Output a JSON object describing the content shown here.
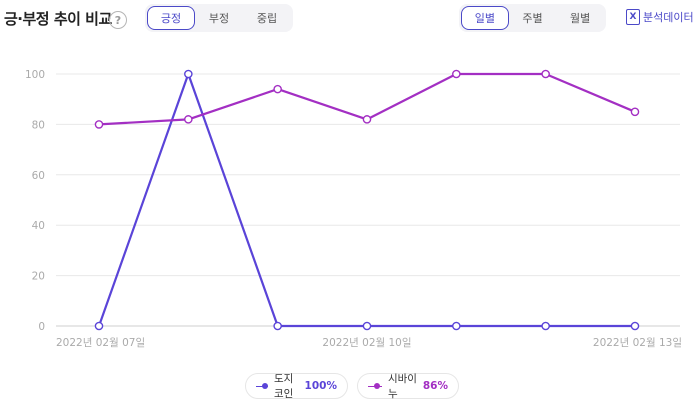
{
  "header": {
    "title": "긍·부정 추이 비교",
    "help_glyph": "?",
    "sentiment_tabs": [
      {
        "label": "긍정",
        "active": true
      },
      {
        "label": "부정",
        "active": false
      },
      {
        "label": "중립",
        "active": false
      }
    ],
    "period_tabs": [
      {
        "label": "일별",
        "active": true
      },
      {
        "label": "주별",
        "active": false
      },
      {
        "label": "월별",
        "active": false
      }
    ],
    "export_label": "분석데이터",
    "export_icon": "excel-icon"
  },
  "legend": [
    {
      "name": "도지코인",
      "percent": "100%",
      "color": "#5a44d8"
    },
    {
      "name": "시바이누",
      "percent": "86%",
      "color": "#a32fc3"
    }
  ],
  "chart_data": {
    "type": "line",
    "title": "",
    "xlabel": "",
    "ylabel": "",
    "ylim": [
      0,
      100
    ],
    "yticks": [
      0,
      20,
      40,
      60,
      80,
      100
    ],
    "x": [
      "2022년 02월 07일",
      "",
      "",
      "2022년 02월 10일",
      "",
      "",
      "2022년 02월 13일"
    ],
    "xtick_labels": [
      "2022년 02월 07일",
      "2022년 02월 10일",
      "2022년 02월 13일"
    ],
    "grid": true,
    "legend_position": "bottom-center",
    "series": [
      {
        "name": "도지코인",
        "color": "#5a44d8",
        "values": [
          0,
          100,
          0,
          0,
          0,
          0,
          0
        ]
      },
      {
        "name": "시바이누",
        "color": "#a32fc3",
        "values": [
          80,
          82,
          94,
          82,
          100,
          100,
          85
        ]
      }
    ]
  }
}
